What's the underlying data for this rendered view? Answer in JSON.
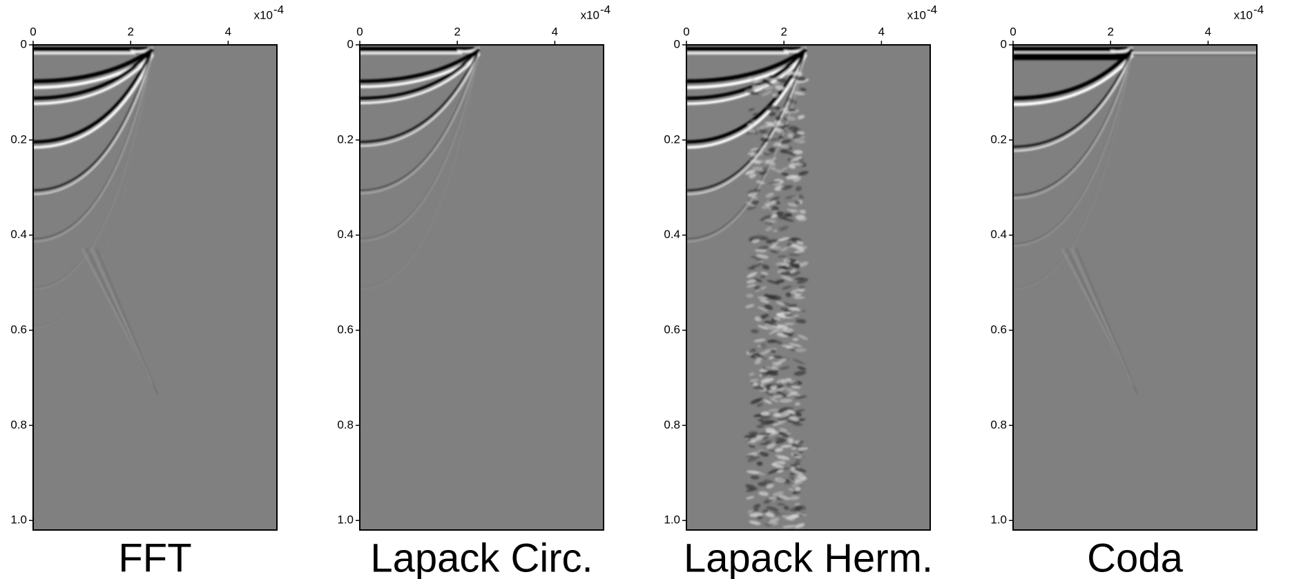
{
  "chart_data": [
    {
      "type": "seismic",
      "title": "FFT",
      "xlim": [
        0,
        5
      ],
      "xticks": [
        0,
        2,
        4
      ],
      "x_scale_base": "x10",
      "x_scale_exponent": "-4",
      "ylim": [
        0,
        1.02
      ],
      "yticks": [
        0,
        0.2,
        0.4,
        0.6,
        0.8,
        {
          "value": 1,
          "label": "1.0"
        }
      ],
      "y_inverted": true
    },
    {
      "type": "seismic",
      "title": "Lapack Circ.",
      "xlim": [
        0,
        5
      ],
      "xticks": [
        0,
        2,
        4
      ],
      "x_scale_base": "x10",
      "x_scale_exponent": "-4",
      "ylim": [
        0,
        1.02
      ],
      "yticks": [
        0,
        0.2,
        0.4,
        0.6,
        0.8,
        {
          "value": 1,
          "label": "1.0"
        }
      ],
      "y_inverted": true
    },
    {
      "type": "seismic",
      "title": "Lapack Herm.",
      "xlim": [
        0,
        5
      ],
      "xticks": [
        0,
        2,
        4
      ],
      "x_scale_base": "x10",
      "x_scale_exponent": "-4",
      "ylim": [
        0,
        1.02
      ],
      "yticks": [
        0,
        0.2,
        0.4,
        0.6,
        0.8,
        {
          "value": 1,
          "label": "1.0"
        }
      ],
      "y_inverted": true
    },
    {
      "type": "seismic",
      "title": "Coda",
      "xlim": [
        0,
        5
      ],
      "xticks": [
        0,
        2,
        4
      ],
      "x_scale_base": "x10",
      "x_scale_exponent": "-4",
      "ylim": [
        0,
        1.02
      ],
      "yticks": [
        0,
        0.2,
        0.4,
        0.6,
        0.8,
        {
          "value": 1,
          "label": "1.0"
        }
      ],
      "y_inverted": true
    }
  ]
}
